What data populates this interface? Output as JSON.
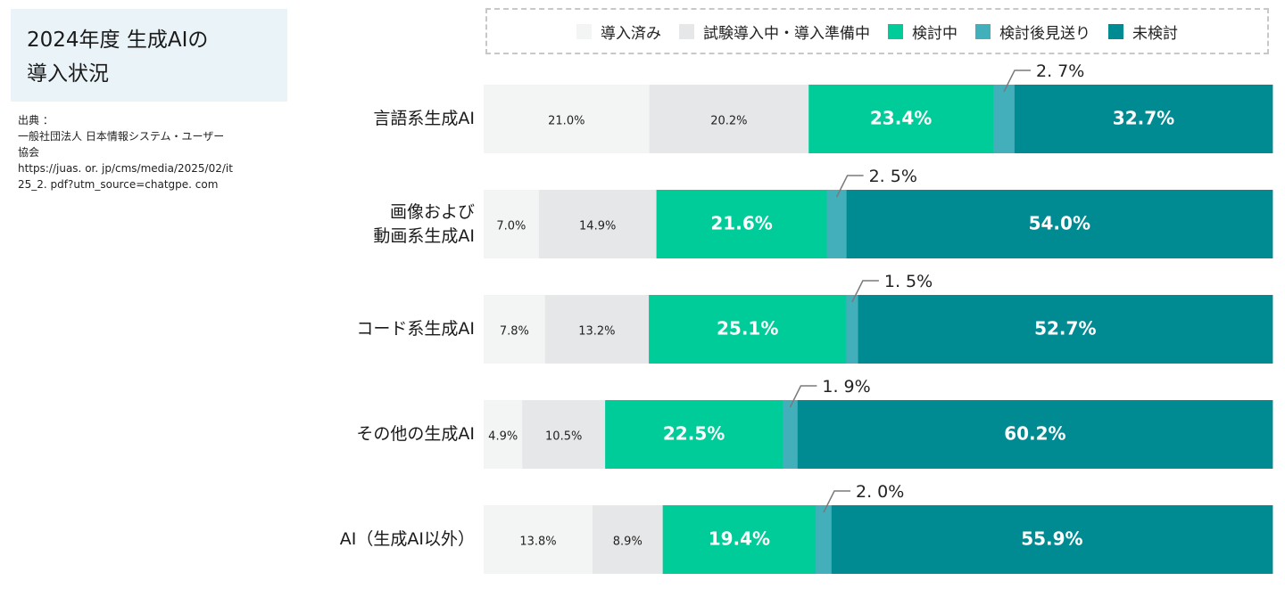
{
  "title": [
    "2024年度 生成AIの",
    "導入状況"
  ],
  "source": [
    "出典 ：",
    "一般社団法人 日本情報システム・ユーザー",
    "協会",
    "https://juas. or. jp/cms/media/2025/02/it",
    "25_2. pdf?utm_source=chatgpe. com"
  ],
  "chart_data": {
    "type": "bar",
    "orientation": "horizontal",
    "stacked": "100%",
    "legend_position": "top",
    "series": [
      {
        "name": "導入済み",
        "color": "#f3f5f5",
        "values": [
          21.0,
          7.0,
          7.8,
          4.9,
          13.8
        ],
        "labels": [
          "21.0%",
          "7.0%",
          "7.8%",
          "4.9%",
          "13.8%"
        ]
      },
      {
        "name": "試験導入中・導入準備中",
        "color": "#e6e7e8",
        "values": [
          20.2,
          14.9,
          13.2,
          10.5,
          8.9
        ],
        "labels": [
          "20.2%",
          "14.9%",
          "13.2%",
          "10.5%",
          "8.9%"
        ]
      },
      {
        "name": "検討中",
        "color": "#00cc99",
        "values": [
          23.4,
          21.6,
          25.1,
          22.5,
          19.4
        ],
        "labels": [
          "23.4%",
          "21.6%",
          "25.1%",
          "22.5%",
          "19.4%"
        ]
      },
      {
        "name": "検討後見送り",
        "color": "#42afbb",
        "values": [
          2.7,
          2.5,
          1.5,
          1.9,
          2.0
        ],
        "labels": [
          "2. 7%",
          "2. 5%",
          "1. 5%",
          "1. 9%",
          "2. 0%"
        ]
      },
      {
        "name": "未検討",
        "color": "#008b93",
        "values": [
          32.7,
          54.0,
          52.7,
          60.2,
          55.9
        ],
        "labels": [
          "32.7%",
          "54.0%",
          "52.7%",
          "60.2%",
          "55.9%"
        ]
      }
    ],
    "categories": [
      [
        "言語系生成AI"
      ],
      [
        "画像および",
        "動画系生成AI"
      ],
      [
        "コード系生成AI"
      ],
      [
        "その他の生成AI"
      ],
      [
        "AI（生成AI以外）"
      ]
    ]
  }
}
